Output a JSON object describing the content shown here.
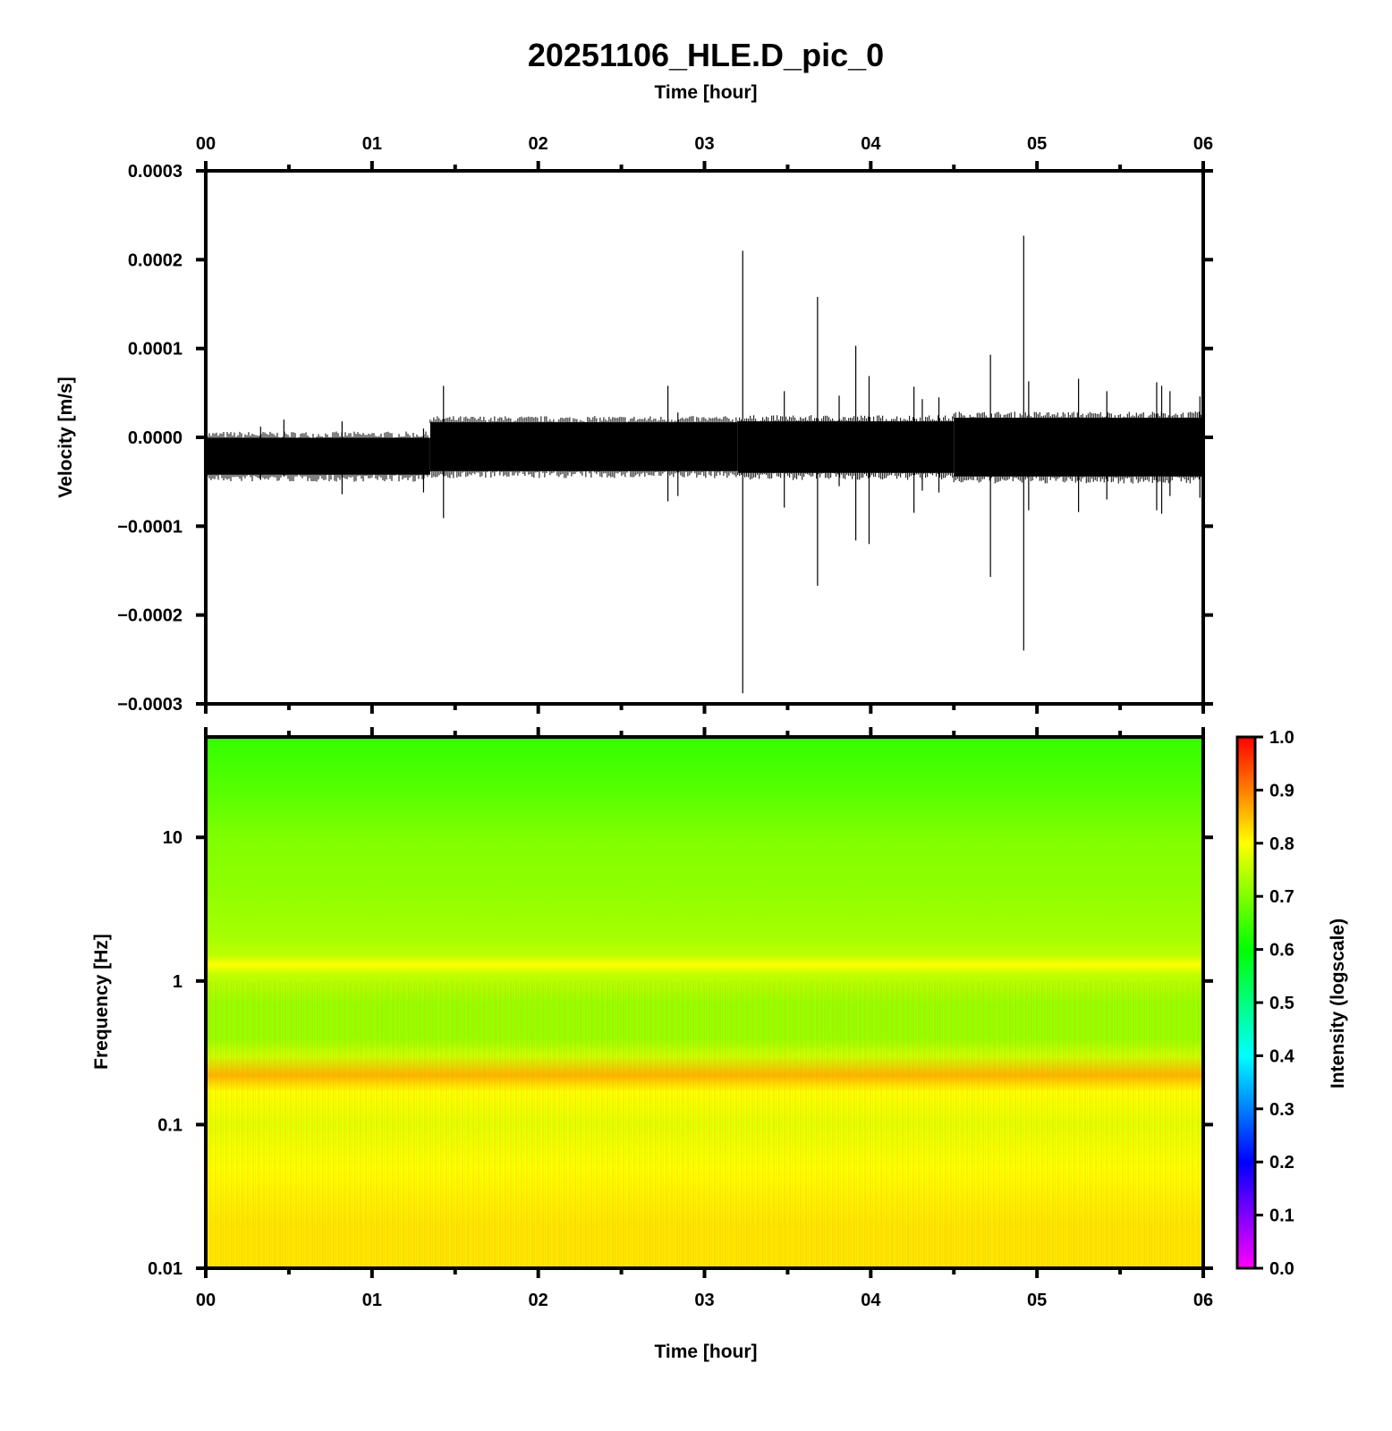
{
  "title": "20251106_HLE.D_pic_0",
  "colors": {
    "frame": "#000000",
    "trace": "#000000",
    "colormap": [
      "#ff00ff",
      "#0000ff",
      "#00ffff",
      "#00ff00",
      "#ffff00",
      "#ff0000"
    ]
  },
  "chart_data": [
    {
      "type": "line",
      "name": "waveform",
      "x_axis_label_top": "Time [hour]",
      "xlabel": "",
      "ylabel": "Velocity [m/s]",
      "xlim": [
        0,
        6
      ],
      "ylim": [
        -0.0003,
        0.0003
      ],
      "x_ticks": [
        "00",
        "01",
        "02",
        "03",
        "04",
        "05",
        "06"
      ],
      "y_ticks": [
        "0.0003",
        "0.0002",
        "0.0001",
        "0.0000",
        "−0.0001",
        "−0.0002",
        "−0.0003"
      ],
      "y_tick_values": [
        0.0003,
        0.0002,
        0.0001,
        0.0,
        -0.0001,
        -0.0002,
        -0.0003
      ],
      "noise_band": [
        {
          "x_start": 0.0,
          "x_end": 1.35,
          "upper": -5e-07,
          "lower": -4.2e-05
        },
        {
          "x_start": 1.35,
          "x_end": 3.2,
          "upper": 1.7e-05,
          "lower": -3.8e-05
        },
        {
          "x_start": 3.2,
          "x_end": 4.5,
          "upper": 1.8e-05,
          "lower": -4e-05
        },
        {
          "x_start": 4.5,
          "x_end": 6.0,
          "upper": 2.2e-05,
          "lower": -4.4e-05
        }
      ],
      "spikes": [
        {
          "x": 0.33,
          "max": 1.2e-05,
          "min": -4.8e-05
        },
        {
          "x": 0.47,
          "max": 2e-05,
          "min": -4.4e-05
        },
        {
          "x": 0.82,
          "max": 1.8e-05,
          "min": -6.4e-05
        },
        {
          "x": 1.31,
          "max": 1e-05,
          "min": -6.2e-05
        },
        {
          "x": 1.43,
          "max": 5.8e-05,
          "min": -9.1e-05
        },
        {
          "x": 2.78,
          "max": 5.8e-05,
          "min": -7.2e-05
        },
        {
          "x": 2.84,
          "max": 2.8e-05,
          "min": -6.6e-05
        },
        {
          "x": 3.23,
          "max": 0.00021,
          "min": -0.000288
        },
        {
          "x": 3.48,
          "max": 5.2e-05,
          "min": -7.9e-05
        },
        {
          "x": 3.68,
          "max": 0.000158,
          "min": -0.000167
        },
        {
          "x": 3.81,
          "max": 4.7e-05,
          "min": -5.5e-05
        },
        {
          "x": 3.91,
          "max": 0.000103,
          "min": -0.000116
        },
        {
          "x": 3.99,
          "max": 6.9e-05,
          "min": -0.00012
        },
        {
          "x": 4.26,
          "max": 5.7e-05,
          "min": -8.5e-05
        },
        {
          "x": 4.31,
          "max": 4.3e-05,
          "min": -6e-05
        },
        {
          "x": 4.41,
          "max": 4.5e-05,
          "min": -6.2e-05
        },
        {
          "x": 4.72,
          "max": 9.3e-05,
          "min": -0.000157
        },
        {
          "x": 4.92,
          "max": 0.000227,
          "min": -0.00024
        },
        {
          "x": 4.95,
          "max": 6.3e-05,
          "min": -8.2e-05
        },
        {
          "x": 5.25,
          "max": 6.6e-05,
          "min": -8.4e-05
        },
        {
          "x": 5.42,
          "max": 5.2e-05,
          "min": -7e-05
        },
        {
          "x": 5.72,
          "max": 6.2e-05,
          "min": -8.2e-05
        },
        {
          "x": 5.75,
          "max": 5.8e-05,
          "min": -8.6e-05
        },
        {
          "x": 5.8,
          "max": 5.2e-05,
          "min": -6.6e-05
        },
        {
          "x": 5.98,
          "max": 4.6e-05,
          "min": -6.8e-05
        }
      ]
    },
    {
      "type": "heatmap",
      "name": "spectrogram",
      "xlabel": "Time [hour]",
      "ylabel": "Frequency [Hz]",
      "xlim": [
        0,
        6
      ],
      "ylim": [
        0.01,
        50
      ],
      "y_scale": "log",
      "x_ticks": [
        "00",
        "01",
        "02",
        "03",
        "04",
        "05",
        "06"
      ],
      "y_ticks": [
        "10",
        "1",
        "0.1",
        "0.01"
      ],
      "y_tick_values": [
        10,
        1,
        0.1,
        0.01
      ],
      "intensity_profile": [
        {
          "freq": 50,
          "intensity": 0.64
        },
        {
          "freq": 20,
          "intensity": 0.67
        },
        {
          "freq": 10,
          "intensity": 0.7
        },
        {
          "freq": 5,
          "intensity": 0.71
        },
        {
          "freq": 2,
          "intensity": 0.73
        },
        {
          "freq": 1.5,
          "intensity": 0.75
        },
        {
          "freq": 1.3,
          "intensity": 0.8
        },
        {
          "freq": 1.1,
          "intensity": 0.75
        },
        {
          "freq": 0.7,
          "intensity": 0.72
        },
        {
          "freq": 0.4,
          "intensity": 0.72
        },
        {
          "freq": 0.3,
          "intensity": 0.76
        },
        {
          "freq": 0.22,
          "intensity": 0.86
        },
        {
          "freq": 0.17,
          "intensity": 0.8
        },
        {
          "freq": 0.1,
          "intensity": 0.78
        },
        {
          "freq": 0.05,
          "intensity": 0.8
        },
        {
          "freq": 0.02,
          "intensity": 0.82
        },
        {
          "freq": 0.01,
          "intensity": 0.82
        }
      ],
      "colorbar": {
        "label": "Intensity (logscale)",
        "range": [
          0,
          1
        ],
        "ticks": [
          "1.0",
          "0.9",
          "0.8",
          "0.7",
          "0.6",
          "0.5",
          "0.4",
          "0.3",
          "0.2",
          "0.1",
          "0.0"
        ],
        "tick_values": [
          1.0,
          0.9,
          0.8,
          0.7,
          0.6,
          0.5,
          0.4,
          0.3,
          0.2,
          0.1,
          0.0
        ]
      }
    }
  ]
}
